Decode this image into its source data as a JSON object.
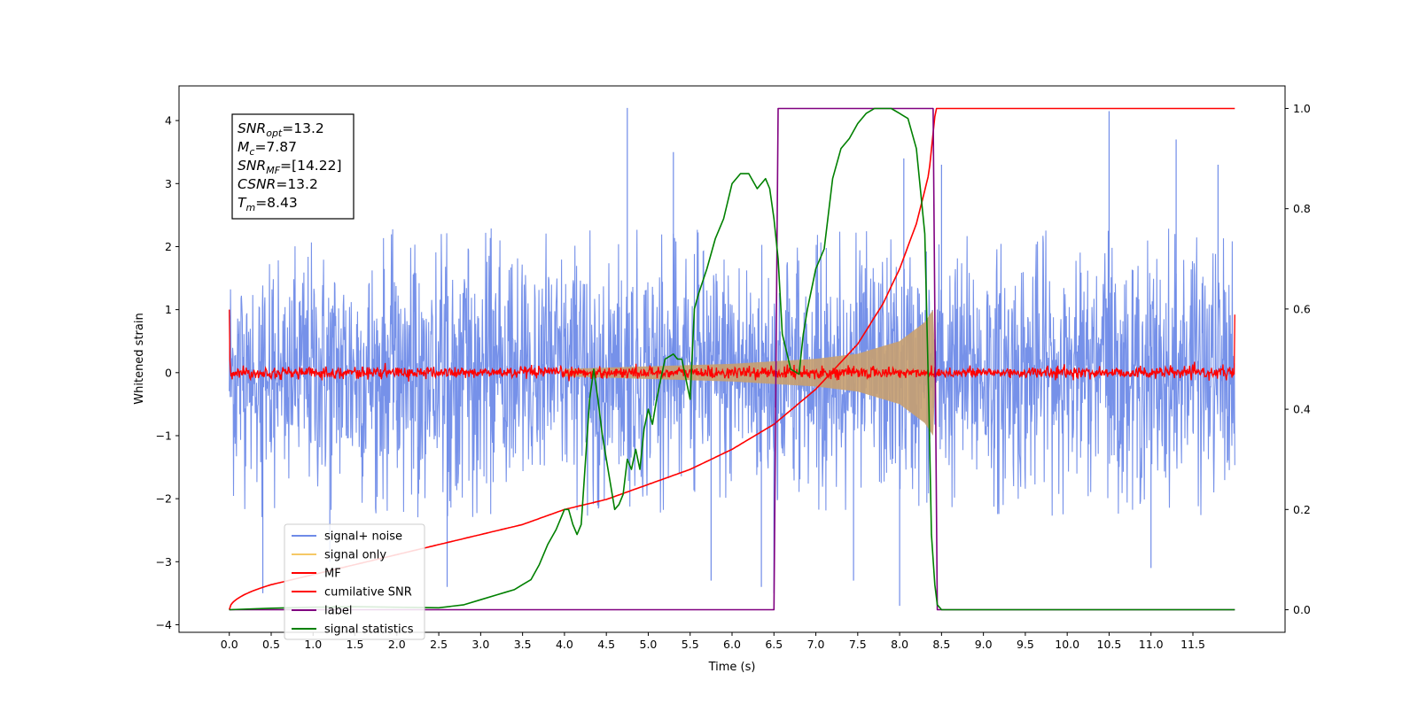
{
  "chart_data": {
    "type": "line",
    "xlabel": "Time (s)",
    "ylabel_left": "Whitened strain",
    "xlim": [
      -0.6,
      12.6
    ],
    "ylim_left": [
      -4.12,
      4.55
    ],
    "ylim_right": [
      -0.045,
      1.045
    ],
    "x_ticks": [
      "0.0",
      "0.5",
      "1.0",
      "1.5",
      "2.0",
      "2.5",
      "3.0",
      "3.5",
      "4.0",
      "4.5",
      "5.0",
      "5.5",
      "6.0",
      "6.5",
      "7.0",
      "7.5",
      "8.0",
      "8.5",
      "9.0",
      "9.5",
      "10.0",
      "10.5",
      "11.0",
      "11.5"
    ],
    "y_ticks_left": [
      "4",
      "3",
      "2",
      "1",
      "0",
      "−1",
      "−2",
      "−3",
      "−4"
    ],
    "y_ticks_right": [
      "1.0",
      "0.8",
      "0.6",
      "0.4",
      "0.2",
      "0.0"
    ],
    "info_box": {
      "snr_opt": {
        "main": "SNR",
        "sub": "opt",
        "value": "=13.2"
      },
      "mc": {
        "main": "M",
        "sub": "c",
        "value": "=7.87"
      },
      "snr_mf": {
        "main": "SNR",
        "sub": "MF",
        "value": "=[14.22]"
      },
      "csnr": {
        "main": "CSNR",
        "value": "=13.2"
      },
      "tm": {
        "main": "T",
        "sub": "m",
        "value": "=8.43"
      }
    },
    "legend": {
      "placement": "lower-left",
      "entries": [
        {
          "label": "signal+ noise",
          "color": "#6f8be8"
        },
        {
          "label": "signal only",
          "color": "#f5c866"
        },
        {
          "label": "MF",
          "color": "#ff0000"
        },
        {
          "label": "cumilative SNR",
          "color": "#ff0000"
        },
        {
          "label": "label",
          "color": "#800080"
        },
        {
          "label": "signal statistics",
          "color": "#008000"
        }
      ]
    },
    "series": [
      {
        "name": "signal+ noise",
        "axis": "left",
        "color": "#6f8be8",
        "description": "noise band",
        "x_range": [
          0.0,
          12.0
        ],
        "typical_range": [
          -2.3,
          2.3
        ],
        "extremes": [
          [
            0.4,
            -3.5
          ],
          [
            1.2,
            -3.0
          ],
          [
            2.6,
            -3.4
          ],
          [
            4.75,
            4.2
          ],
          [
            5.3,
            3.5
          ],
          [
            5.75,
            -3.3
          ],
          [
            6.35,
            -3.4
          ],
          [
            6.5,
            -3.5
          ],
          [
            7.45,
            -3.3
          ],
          [
            8.0,
            -3.7
          ],
          [
            8.05,
            3.4
          ],
          [
            8.5,
            3.3
          ],
          [
            10.5,
            4.15
          ],
          [
            11.3,
            3.7
          ],
          [
            11.0,
            -3.1
          ],
          [
            11.8,
            3.3
          ]
        ]
      },
      {
        "name": "signal only",
        "axis": "left",
        "color": "#c8a070",
        "envelope": {
          "t_coalescence": 8.43,
          "amplitude_at": [
            [
              4.0,
              0.06
            ],
            [
              5.0,
              0.1
            ],
            [
              6.0,
              0.14
            ],
            [
              7.0,
              0.22
            ],
            [
              7.5,
              0.3
            ],
            [
              8.0,
              0.5
            ],
            [
              8.3,
              0.8
            ],
            [
              8.4,
              1.0
            ]
          ]
        }
      },
      {
        "name": "MF",
        "axis": "left",
        "color": "#ff0000",
        "baseline": 0.0,
        "jitter": 0.1,
        "edge_values": [
          [
            0.0,
            1.0
          ],
          [
            12.0,
            0.92
          ]
        ]
      },
      {
        "name": "cumilative SNR",
        "axis": "right",
        "color": "#ff0000",
        "x": [
          0.0,
          0.5,
          1.0,
          1.5,
          2.0,
          2.5,
          3.0,
          3.5,
          4.0,
          4.5,
          5.0,
          5.5,
          6.0,
          6.5,
          7.0,
          7.5,
          7.8,
          8.0,
          8.2,
          8.35,
          8.43,
          8.5,
          12.0
        ],
        "y": [
          0.0,
          0.05,
          0.07,
          0.09,
          0.11,
          0.13,
          0.15,
          0.17,
          0.2,
          0.22,
          0.25,
          0.28,
          0.32,
          0.37,
          0.44,
          0.53,
          0.61,
          0.68,
          0.77,
          0.87,
          1.0,
          1.0,
          1.0
        ]
      },
      {
        "name": "label",
        "axis": "right",
        "color": "#800080",
        "x": [
          0.0,
          6.5,
          6.55,
          8.4,
          8.45,
          12.0
        ],
        "y": [
          0.0,
          0.0,
          1.0,
          1.0,
          0.0,
          0.0
        ]
      },
      {
        "name": "signal statistics",
        "axis": "right",
        "color": "#008000",
        "x": [
          0.0,
          0.5,
          1.0,
          1.5,
          2.0,
          2.5,
          2.8,
          3.0,
          3.2,
          3.3,
          3.4,
          3.5,
          3.6,
          3.7,
          3.8,
          3.9,
          4.0,
          4.05,
          4.1,
          4.15,
          4.2,
          4.3,
          4.35,
          4.4,
          4.45,
          4.5,
          4.6,
          4.65,
          4.7,
          4.75,
          4.8,
          4.85,
          4.9,
          4.95,
          5.0,
          5.05,
          5.1,
          5.15,
          5.2,
          5.3,
          5.35,
          5.4,
          5.5,
          5.55,
          5.6,
          5.7,
          5.8,
          5.9,
          6.0,
          6.1,
          6.2,
          6.3,
          6.4,
          6.45,
          6.5,
          6.55,
          6.6,
          6.7,
          6.8,
          6.85,
          6.9,
          7.0,
          7.1,
          7.2,
          7.3,
          7.4,
          7.5,
          7.6,
          7.7,
          7.8,
          7.9,
          8.0,
          8.1,
          8.2,
          8.3,
          8.35,
          8.38,
          8.42,
          8.45,
          8.5,
          8.6,
          12.0
        ],
        "y": [
          0.0,
          0.003,
          0.005,
          0.006,
          0.005,
          0.004,
          0.01,
          0.02,
          0.03,
          0.035,
          0.04,
          0.05,
          0.06,
          0.09,
          0.13,
          0.16,
          0.2,
          0.2,
          0.17,
          0.15,
          0.17,
          0.42,
          0.48,
          0.42,
          0.35,
          0.3,
          0.2,
          0.21,
          0.23,
          0.3,
          0.28,
          0.32,
          0.28,
          0.36,
          0.4,
          0.37,
          0.42,
          0.46,
          0.5,
          0.51,
          0.5,
          0.5,
          0.42,
          0.6,
          0.63,
          0.68,
          0.74,
          0.78,
          0.85,
          0.87,
          0.87,
          0.84,
          0.86,
          0.84,
          0.78,
          0.7,
          0.55,
          0.48,
          0.47,
          0.55,
          0.6,
          0.68,
          0.72,
          0.86,
          0.92,
          0.94,
          0.97,
          0.99,
          1.0,
          1.0,
          1.0,
          0.99,
          0.98,
          0.92,
          0.75,
          0.4,
          0.15,
          0.05,
          0.01,
          0.0,
          0.0,
          0.0
        ]
      }
    ]
  }
}
